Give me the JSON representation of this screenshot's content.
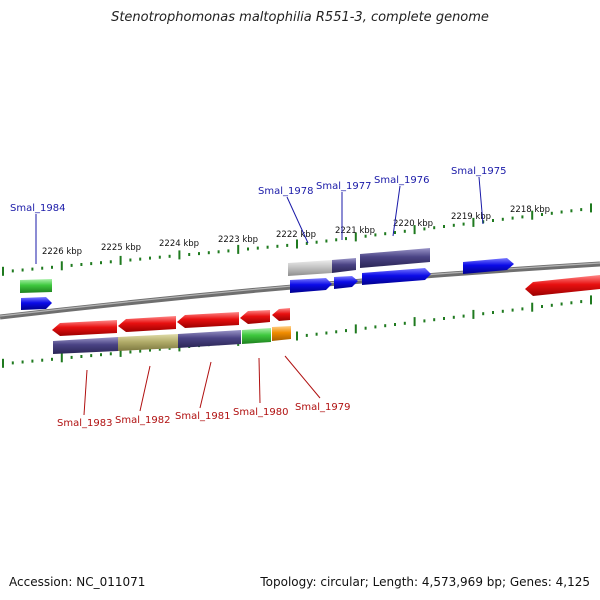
{
  "title": "Stenotrophomonas maltophilia R551-3, complete genome",
  "footer": {
    "accession": "Accession: NC_011071",
    "topology": "Topology: circular; Length: 4,573,969 bp; Genes: 4,125"
  },
  "scale_labels": [
    "2226 kbp",
    "2225 kbp",
    "2224 kbp",
    "2223 kbp",
    "2222 kbp",
    "2221 kbp",
    "2220 kbp",
    "2219 kbp",
    "2218 kbp"
  ],
  "gene_labels_top": [
    "Smal_1984",
    "Smal_1978",
    "Smal_1977",
    "Smal_1976",
    "Smal_1975"
  ],
  "gene_labels_bottom": [
    "Smal_1983",
    "Smal_1982",
    "Smal_1981",
    "Smal_1980",
    "Smal_1979"
  ],
  "colors": {
    "cds_red": "#e01010",
    "gene_blue": "#0a0ae6",
    "feature_purple": "#4a4384",
    "feature_green": "#3ec83e",
    "feature_olive": "#b2ad6a",
    "feature_orange": "#f08c00",
    "feature_gray": "#c0c0c0",
    "tick_green": "#1f7a1f",
    "label_blue": "#1a1aa8",
    "label_red": "#b01010"
  }
}
